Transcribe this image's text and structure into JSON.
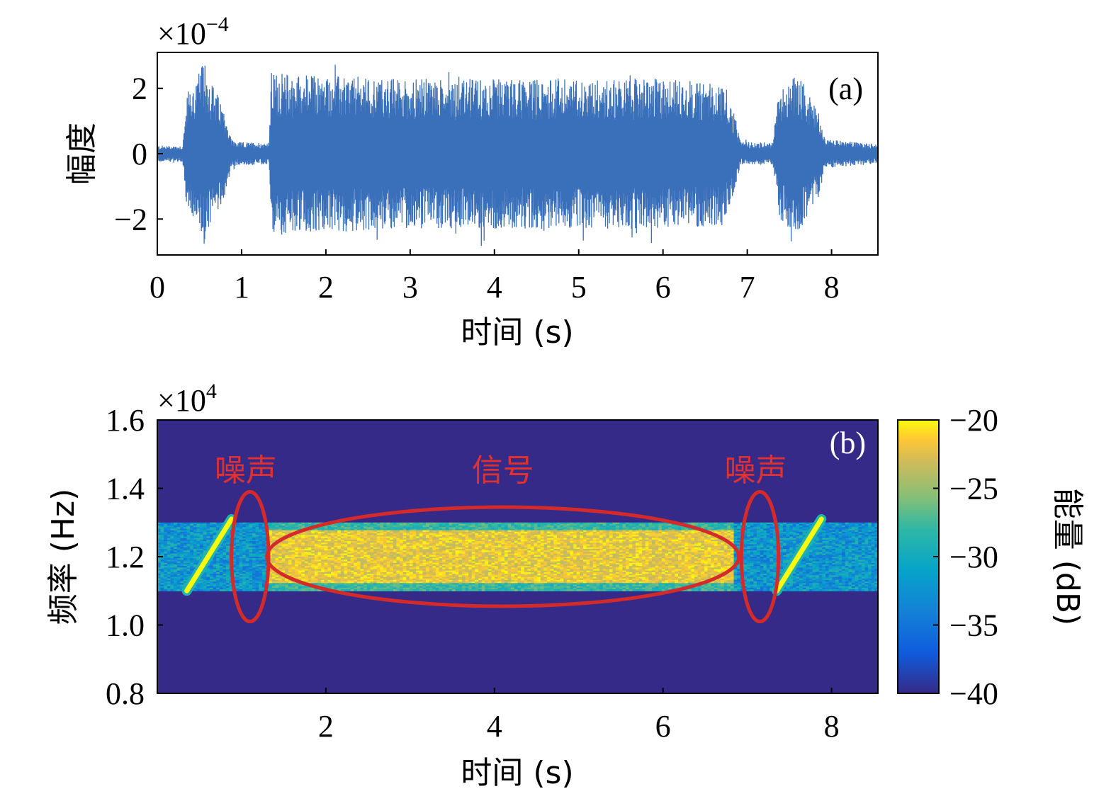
{
  "chart_data": [
    {
      "type": "line",
      "panel_label": "(a)",
      "xlabel": "时间 (s)",
      "ylabel": "幅度",
      "y_exponent": {
        "base": "×10",
        "power": "−4"
      },
      "xlim": [
        0,
        8.55
      ],
      "ylim": [
        -3.1,
        3.1
      ],
      "x_ticks": [
        0,
        1,
        2,
        3,
        4,
        5,
        6,
        7,
        8
      ],
      "x_tick_labels": [
        "0",
        "1",
        "2",
        "3",
        "4",
        "5",
        "6",
        "7",
        "8"
      ],
      "y_ticks": [
        -2,
        0,
        2
      ],
      "y_tick_labels": [
        "−2",
        "0",
        "2"
      ],
      "series": [
        {
          "color": "#3a6fba",
          "envelope": {
            "t": [
              0.0,
              0.3,
              0.35,
              0.55,
              0.8,
              0.88,
              0.95,
              1.33,
              1.35,
              2.0,
              3.0,
              4.0,
              5.0,
              6.0,
              6.7,
              6.85,
              6.92,
              7.3,
              7.38,
              7.6,
              7.85,
              7.92,
              8.55
            ],
            "amp": [
              0.25,
              0.25,
              1.7,
              2.8,
              1.3,
              0.45,
              0.35,
              0.35,
              2.5,
              2.4,
              2.3,
              2.3,
              2.3,
              2.3,
              2.2,
              1.2,
              0.35,
              0.35,
              2.0,
              2.5,
              1.3,
              0.45,
              0.3
            ]
          }
        }
      ]
    },
    {
      "type": "heatmap",
      "panel_label": "(b)",
      "xlabel": "时间 (s)",
      "ylabel": "频率 (Hz)",
      "y_exponent": {
        "base": "×10",
        "power": "4"
      },
      "xlim": [
        0,
        8.55
      ],
      "ylim": [
        0.8,
        1.6
      ],
      "x_ticks": [
        2,
        4,
        6,
        8
      ],
      "x_tick_labels": [
        "2",
        "4",
        "6",
        "8"
      ],
      "y_ticks": [
        0.8,
        1.0,
        1.2,
        1.4,
        1.6
      ],
      "y_tick_labels": [
        "0.8",
        "1.0",
        "1.2",
        "1.4",
        "1.6"
      ],
      "colorbar": {
        "label": "能量 (dB)",
        "range": [
          -40,
          -20
        ],
        "ticks": [
          -20,
          -25,
          -30,
          -35,
          -40
        ],
        "tick_labels": [
          "−20",
          "−25",
          "−30",
          "−35",
          "−40"
        ]
      },
      "band": {
        "f_low": 1.1,
        "f_high": 1.3,
        "t_start": 0.0,
        "t_end": 8.55,
        "level_db": -32
      },
      "signal": {
        "t_start": 1.33,
        "t_end": 6.85,
        "f_low": 1.1,
        "f_high": 1.3,
        "level_db": -22
      },
      "sweeps": [
        {
          "t_start": 0.35,
          "t_end": 0.88,
          "f_start": 1.1,
          "f_end": 1.31,
          "level_db": -20
        },
        {
          "t_start": 7.35,
          "t_end": 7.88,
          "f_start": 1.1,
          "f_end": 1.31,
          "level_db": -20
        }
      ],
      "annotations": [
        {
          "text": "噪声",
          "x": 1.05,
          "y": 1.455,
          "color": "#e03030"
        },
        {
          "text": "信号",
          "x": 4.1,
          "y": 1.455,
          "color": "#e03030"
        },
        {
          "text": "噪声",
          "x": 7.1,
          "y": 1.455,
          "color": "#e03030"
        }
      ],
      "ellipses": [
        {
          "cx": 1.1,
          "cy": 1.2,
          "rx": 0.22,
          "ry": 0.19,
          "color": "#d42a2a"
        },
        {
          "cx": 4.1,
          "cy": 1.2,
          "rx": 2.8,
          "ry": 0.145,
          "color": "#d42a2a"
        },
        {
          "cx": 7.15,
          "cy": 1.2,
          "rx": 0.22,
          "ry": 0.19,
          "color": "#d42a2a"
        }
      ]
    }
  ]
}
